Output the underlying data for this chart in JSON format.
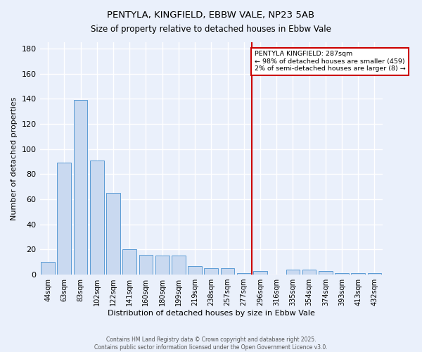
{
  "title": "PENTYLA, KINGFIELD, EBBW VALE, NP23 5AB",
  "subtitle": "Size of property relative to detached houses in Ebbw Vale",
  "xlabel": "Distribution of detached houses by size in Ebbw Vale",
  "ylabel": "Number of detached properties",
  "bar_color": "#c9d9f0",
  "bar_edge_color": "#5b9bd5",
  "background_color": "#eaf0fb",
  "grid_color": "#ffffff",
  "categories": [
    "44sqm",
    "63sqm",
    "83sqm",
    "102sqm",
    "122sqm",
    "141sqm",
    "160sqm",
    "180sqm",
    "199sqm",
    "219sqm",
    "238sqm",
    "257sqm",
    "277sqm",
    "296sqm",
    "316sqm",
    "335sqm",
    "354sqm",
    "374sqm",
    "393sqm",
    "413sqm",
    "432sqm"
  ],
  "values": [
    10,
    89,
    139,
    91,
    65,
    20,
    16,
    15,
    15,
    7,
    5,
    5,
    1,
    3,
    0,
    4,
    4,
    3,
    1,
    1,
    1
  ],
  "vline_index": 12,
  "vline_color": "#cc0000",
  "annotation_title": "PENTYLA KINGFIELD: 287sqm",
  "annotation_line1": "← 98% of detached houses are smaller (459)",
  "annotation_line2": "2% of semi-detached houses are larger (8) →",
  "annotation_box_color": "#cc0000",
  "ylim": [
    0,
    185
  ],
  "yticks": [
    0,
    20,
    40,
    60,
    80,
    100,
    120,
    140,
    160,
    180
  ],
  "footer1": "Contains HM Land Registry data © Crown copyright and database right 2025.",
  "footer2": "Contains public sector information licensed under the Open Government Licence v3.0."
}
